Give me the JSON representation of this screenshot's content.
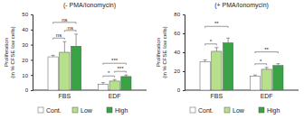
{
  "chart_data": [
    {
      "type": "bar",
      "title": "(- PMA/Ionomycin)",
      "y_label": "Proliferation (in % CFSE low cells)",
      "categories": [
        "FBS",
        "EDF"
      ],
      "series": [
        {
          "name": "Cont.",
          "color": "#ffffff",
          "values": [
            22,
            4
          ],
          "errors": [
            1,
            1
          ]
        },
        {
          "name": "Low",
          "color": "#b8e08c",
          "values": [
            25,
            6
          ],
          "errors": [
            7,
            1
          ]
        },
        {
          "name": "High",
          "color": "#3aa346",
          "values": [
            29,
            9
          ],
          "errors": [
            8,
            1
          ]
        }
      ],
      "ylim": [
        0,
        50
      ],
      "yticks": [
        0,
        10,
        20,
        30,
        40,
        50
      ],
      "grid": false,
      "legend": "bottom",
      "annotations": [
        {
          "category": "FBS",
          "from": "Cont.",
          "to": "Low",
          "label": "ns"
        },
        {
          "category": "FBS",
          "from": "Low",
          "to": "High",
          "label": "ns"
        },
        {
          "category": "FBS",
          "from": "Cont.",
          "to": "High",
          "label": "ns"
        },
        {
          "category": "EDF",
          "from": "Cont.",
          "to": "Low",
          "label": "*"
        },
        {
          "category": "EDF",
          "from": "Low",
          "to": "High",
          "label": "***"
        },
        {
          "category": "EDF",
          "from": "Cont.",
          "to": "High",
          "label": "***"
        }
      ]
    },
    {
      "type": "bar",
      "title": "(+ PMA/Ionomycin)",
      "y_label": "Proliferation (in % CFSE low cells)",
      "categories": [
        "FBS",
        "EDF"
      ],
      "series": [
        {
          "name": "Cont.",
          "color": "#ffffff",
          "values": [
            30,
            15
          ],
          "errors": [
            2,
            1
          ]
        },
        {
          "name": "Low",
          "color": "#b8e08c",
          "values": [
            41,
            22
          ],
          "errors": [
            4,
            2
          ]
        },
        {
          "name": "High",
          "color": "#3aa346",
          "values": [
            50,
            26
          ],
          "errors": [
            5,
            2
          ]
        }
      ],
      "ylim": [
        0,
        80
      ],
      "yticks": [
        0,
        20,
        40,
        60,
        80
      ],
      "grid": false,
      "legend": "bottom",
      "annotations": [
        {
          "category": "FBS",
          "from": "Cont.",
          "to": "Low",
          "label": "*"
        },
        {
          "category": "FBS",
          "from": "Cont.",
          "to": "High",
          "label": "**"
        },
        {
          "category": "EDF",
          "from": "Cont.",
          "to": "Low",
          "label": "*"
        },
        {
          "category": "EDF",
          "from": "Cont.",
          "to": "High",
          "label": "**"
        }
      ]
    }
  ]
}
